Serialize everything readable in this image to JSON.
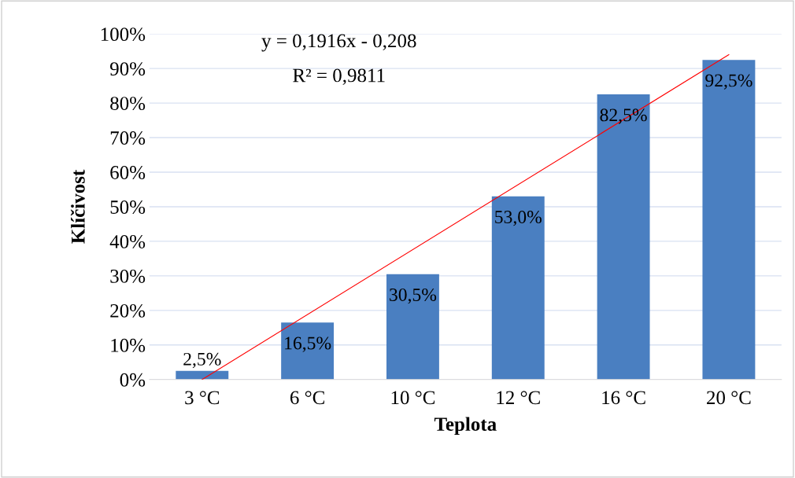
{
  "chart_data": {
    "type": "bar",
    "xlabel": "Teplota",
    "ylabel": "Klíčivost",
    "categories": [
      "3 °C",
      "6 °C",
      "10 °C",
      "12 °C",
      "16 °C",
      "20 °C"
    ],
    "series": [
      {
        "color": "#4a7fc1",
        "values": [
          2.5,
          16.5,
          30.5,
          53.0,
          82.5,
          92.5
        ],
        "value_labels": [
          "2,5%",
          "16,5%",
          "30,5%",
          "53,0%",
          "82,5%",
          "92,5%"
        ]
      },
      {
        "type": "line",
        "color": "#ff0000",
        "x": [
          "3 °C",
          "20 °C"
        ],
        "values": [
          0,
          94
        ]
      }
    ],
    "ylim": [
      0,
      100
    ],
    "yticks": [
      {
        "value": 0,
        "label": "0%"
      },
      {
        "value": 10,
        "label": "10%"
      },
      {
        "value": 20,
        "label": "20%"
      },
      {
        "value": 30,
        "label": "30%"
      },
      {
        "value": 40,
        "label": "40%"
      },
      {
        "value": 50,
        "label": "50%"
      },
      {
        "value": 60,
        "label": "60%"
      },
      {
        "value": 70,
        "label": "70%"
      },
      {
        "value": 80,
        "label": "80%"
      },
      {
        "value": 90,
        "label": "90%"
      },
      {
        "value": 100,
        "label": "100%"
      }
    ],
    "annotations": [
      "y = 0,1916x - 0,208",
      "R² = 0,9811"
    ],
    "grid": "y",
    "legend": false
  }
}
